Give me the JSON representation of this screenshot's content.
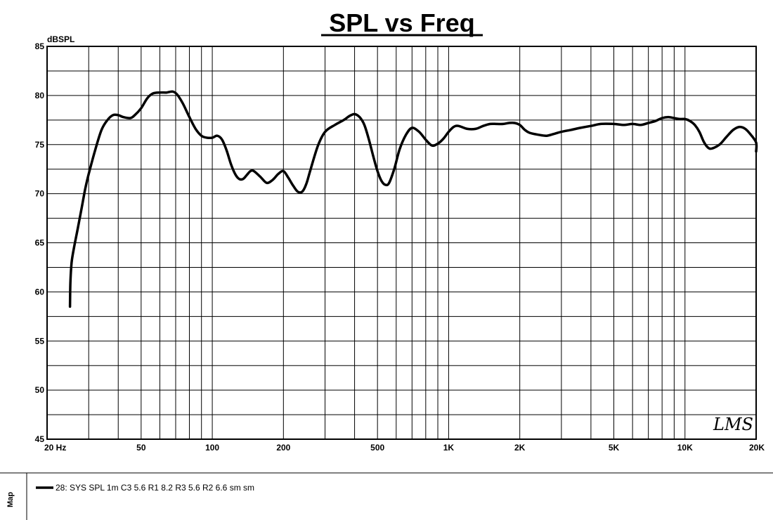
{
  "chart_data": {
    "type": "line",
    "title": "SPL vs Freq",
    "ylabel": "dBSPL",
    "xlabel": "",
    "x_scale": "log",
    "xlim": [
      20,
      20000
    ],
    "ylim": [
      45,
      85
    ],
    "grid": true,
    "legend_position": "bottom-left",
    "y_ticks": [
      "85",
      "80",
      "75",
      "70",
      "65",
      "60",
      "55",
      "50",
      "45"
    ],
    "x_ticks": [
      {
        "value": 20,
        "label": "20  Hz"
      },
      {
        "value": 50,
        "label": "50"
      },
      {
        "value": 100,
        "label": "100"
      },
      {
        "value": 200,
        "label": "200"
      },
      {
        "value": 500,
        "label": "500"
      },
      {
        "value": 1000,
        "label": "1K"
      },
      {
        "value": 2000,
        "label": "2K"
      },
      {
        "value": 5000,
        "label": "5K"
      },
      {
        "value": 10000,
        "label": "10K"
      },
      {
        "value": 20000,
        "label": "20K"
      }
    ],
    "series": [
      {
        "name": "28: SYS SPL 1m C3 5.6 R1 8.2 R3 5.6 R2 6.6 sm sm",
        "color": "#000000",
        "points": [
          [
            25,
            58.5
          ],
          [
            25.1,
            61
          ],
          [
            25.4,
            63
          ],
          [
            26,
            64.5
          ],
          [
            27,
            66.5
          ],
          [
            28,
            68.5
          ],
          [
            29,
            70.5
          ],
          [
            30,
            72
          ],
          [
            32,
            74.5
          ],
          [
            34,
            76.5
          ],
          [
            36,
            77.5
          ],
          [
            38,
            78
          ],
          [
            40,
            78
          ],
          [
            42,
            77.8
          ],
          [
            45,
            77.7
          ],
          [
            47,
            78
          ],
          [
            50,
            78.7
          ],
          [
            53,
            79.7
          ],
          [
            56,
            80.2
          ],
          [
            60,
            80.3
          ],
          [
            64,
            80.3
          ],
          [
            68,
            80.4
          ],
          [
            71,
            80.1
          ],
          [
            75,
            79.2
          ],
          [
            80,
            77.8
          ],
          [
            85,
            76.6
          ],
          [
            90,
            75.9
          ],
          [
            95,
            75.7
          ],
          [
            100,
            75.7
          ],
          [
            105,
            75.9
          ],
          [
            110,
            75.5
          ],
          [
            115,
            74.4
          ],
          [
            120,
            73
          ],
          [
            125,
            72
          ],
          [
            130,
            71.5
          ],
          [
            135,
            71.5
          ],
          [
            140,
            71.9
          ],
          [
            145,
            72.3
          ],
          [
            150,
            72.3
          ],
          [
            160,
            71.7
          ],
          [
            170,
            71.1
          ],
          [
            180,
            71.4
          ],
          [
            190,
            72
          ],
          [
            200,
            72.3
          ],
          [
            210,
            71.6
          ],
          [
            220,
            70.8
          ],
          [
            230,
            70.2
          ],
          [
            240,
            70.2
          ],
          [
            250,
            71
          ],
          [
            260,
            72.4
          ],
          [
            280,
            74.9
          ],
          [
            300,
            76.3
          ],
          [
            330,
            77
          ],
          [
            360,
            77.5
          ],
          [
            380,
            77.9
          ],
          [
            400,
            78.1
          ],
          [
            420,
            77.8
          ],
          [
            440,
            77
          ],
          [
            460,
            75.5
          ],
          [
            480,
            73.8
          ],
          [
            500,
            72.3
          ],
          [
            520,
            71.3
          ],
          [
            540,
            70.9
          ],
          [
            560,
            71.1
          ],
          [
            590,
            72.6
          ],
          [
            620,
            74.5
          ],
          [
            660,
            76
          ],
          [
            700,
            76.7
          ],
          [
            750,
            76.3
          ],
          [
            800,
            75.5
          ],
          [
            850,
            74.9
          ],
          [
            900,
            75.1
          ],
          [
            950,
            75.6
          ],
          [
            1000,
            76.3
          ],
          [
            1050,
            76.8
          ],
          [
            1100,
            76.9
          ],
          [
            1200,
            76.6
          ],
          [
            1300,
            76.6
          ],
          [
            1400,
            76.9
          ],
          [
            1500,
            77.1
          ],
          [
            1600,
            77.1
          ],
          [
            1700,
            77.1
          ],
          [
            1800,
            77.2
          ],
          [
            1900,
            77.2
          ],
          [
            2000,
            77
          ],
          [
            2100,
            76.5
          ],
          [
            2200,
            76.2
          ],
          [
            2400,
            76
          ],
          [
            2600,
            75.9
          ],
          [
            2800,
            76.1
          ],
          [
            3000,
            76.3
          ],
          [
            3300,
            76.5
          ],
          [
            3600,
            76.7
          ],
          [
            4000,
            76.9
          ],
          [
            4400,
            77.1
          ],
          [
            5000,
            77.1
          ],
          [
            5500,
            77
          ],
          [
            6000,
            77.1
          ],
          [
            6500,
            77
          ],
          [
            7000,
            77.2
          ],
          [
            7500,
            77.4
          ],
          [
            8000,
            77.7
          ],
          [
            8500,
            77.8
          ],
          [
            9000,
            77.7
          ],
          [
            9500,
            77.6
          ],
          [
            10000,
            77.6
          ],
          [
            10500,
            77.4
          ],
          [
            11000,
            77
          ],
          [
            11500,
            76.3
          ],
          [
            12000,
            75.3
          ],
          [
            12500,
            74.7
          ],
          [
            13000,
            74.6
          ],
          [
            14000,
            75
          ],
          [
            15000,
            75.8
          ],
          [
            16000,
            76.5
          ],
          [
            17000,
            76.8
          ],
          [
            18000,
            76.6
          ],
          [
            19000,
            76
          ],
          [
            20000,
            75.2
          ],
          [
            20600,
            74.3
          ]
        ]
      }
    ]
  },
  "panel": {
    "side_label": "Map",
    "signature": "LMS"
  }
}
